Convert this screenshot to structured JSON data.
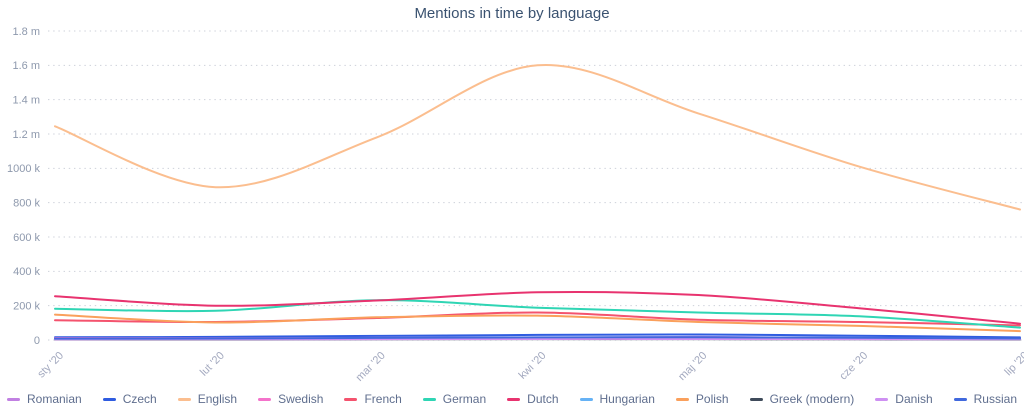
{
  "chart_data": {
    "type": "line",
    "title": "Mentions in time by language",
    "categories": [
      "sty '20",
      "lut '20",
      "mar '20",
      "kwi '20",
      "maj '20",
      "cze '20",
      "lip '20"
    ],
    "x_axis": {
      "tick_rotation_deg": -45
    },
    "y_axis": {
      "range_k": [
        0,
        1800
      ],
      "ticks": [
        {
          "label": "1.8 m",
          "value": 1800
        },
        {
          "label": "1.6 m",
          "value": 1600
        },
        {
          "label": "1.4 m",
          "value": 1400
        },
        {
          "label": "1.2 m",
          "value": 1200
        },
        {
          "label": "1000 k",
          "value": 1000
        },
        {
          "label": "800 k",
          "value": 800
        },
        {
          "label": "600 k",
          "value": 600
        },
        {
          "label": "400 k",
          "value": 400
        },
        {
          "label": "200 k",
          "value": 200
        },
        {
          "label": "0",
          "value": 0
        }
      ]
    },
    "grid": "dotted-horizontal",
    "legend_position": "bottom",
    "series": [
      {
        "name": "Romanian",
        "color": "#c180e2",
        "values_k": [
          7,
          7,
          9,
          12,
          18,
          10,
          6
        ]
      },
      {
        "name": "Czech",
        "color": "#2f5ce0",
        "values_k": [
          16,
          18,
          24,
          30,
          32,
          25,
          15
        ]
      },
      {
        "name": "English",
        "color": "#fbbe8f",
        "values_k": [
          1245,
          890,
          1180,
          1600,
          1320,
          1010,
          760
        ]
      },
      {
        "name": "Swedish",
        "color": "#f473cb",
        "values_k": [
          11,
          10,
          12,
          13,
          12,
          10,
          8
        ]
      },
      {
        "name": "French",
        "color": "#f4536e",
        "values_k": [
          115,
          105,
          128,
          160,
          118,
          105,
          85
        ]
      },
      {
        "name": "German",
        "color": "#2fd5b4",
        "values_k": [
          182,
          170,
          232,
          188,
          160,
          138,
          72
        ]
      },
      {
        "name": "Dutch",
        "color": "#e8336f",
        "values_k": [
          255,
          200,
          230,
          278,
          262,
          185,
          95
        ]
      },
      {
        "name": "Hungarian",
        "color": "#66b2f5",
        "values_k": [
          6,
          7,
          8,
          10,
          10,
          8,
          6
        ]
      },
      {
        "name": "Polish",
        "color": "#faa05c",
        "values_k": [
          148,
          102,
          132,
          142,
          105,
          82,
          52
        ]
      },
      {
        "name": "Greek (modern)",
        "color": "#3f4b5b",
        "values_k": [
          3,
          3,
          4,
          5,
          5,
          4,
          3
        ]
      },
      {
        "name": "Danish",
        "color": "#ce90f2",
        "values_k": [
          4,
          4,
          5,
          6,
          6,
          5,
          4
        ]
      },
      {
        "name": "Russian",
        "color": "#4169dd",
        "values_k": [
          8,
          9,
          12,
          15,
          16,
          13,
          9
        ]
      }
    ],
    "colors": {
      "title_text": "#3a5270",
      "y_axis_text": "#8e99ad",
      "x_axis_text": "#a3a9bf",
      "legend_text": "#5f6e8e",
      "gridline": "#cdd1da",
      "background": "#ffffff"
    }
  }
}
